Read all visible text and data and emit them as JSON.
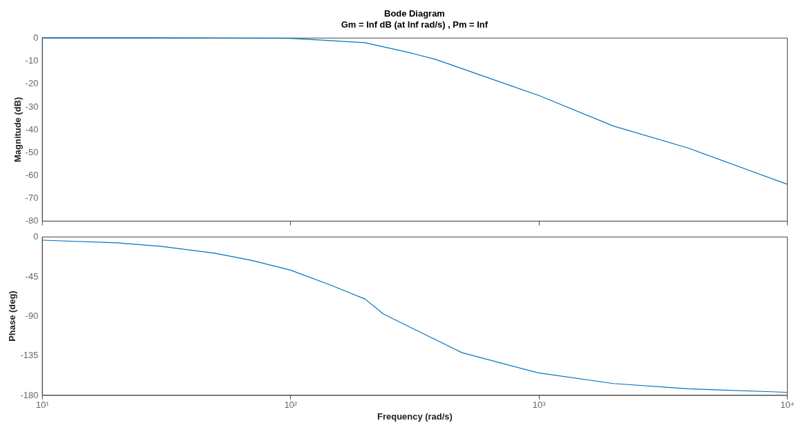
{
  "chart_data": [
    {
      "type": "line",
      "title": "Bode Diagram",
      "subtitle": "Gm = Inf dB (at Inf rad/s) ,  Pm = Inf",
      "ylabel": "Magnitude (dB)",
      "log": "x",
      "grid": false,
      "tick_labels": "y",
      "xlim": [
        10,
        10000
      ],
      "ylim": [
        -80,
        0
      ],
      "yticks": [
        -80,
        -70,
        -60,
        -50,
        -40,
        -30,
        -20,
        -10,
        0
      ],
      "xticks": [
        {
          "value": 10,
          "label": null
        },
        {
          "value": 100,
          "label": null
        },
        {
          "value": 1000,
          "label": null
        },
        {
          "value": 10000,
          "label": null
        }
      ],
      "series": [
        {
          "color": "#0072bd",
          "x": [
            10,
            20,
            50,
            100,
            142,
            200,
            309,
            385,
            600,
            1000,
            2000,
            4000,
            10000
          ],
          "values": [
            0,
            0,
            -0.1,
            -0.3,
            -1.2,
            -2.2,
            -6.8,
            -9.5,
            -16.8,
            -25.2,
            -38.6,
            -48.2,
            -64
          ]
        }
      ]
    },
    {
      "type": "line",
      "xlabel": "Frequency  (rad/s)",
      "ylabel": "Phase (deg)",
      "log": "x",
      "grid": false,
      "xlim": [
        10,
        10000
      ],
      "ylim": [
        -180,
        0
      ],
      "yticks": [
        -180,
        -135,
        -90,
        -45,
        0
      ],
      "xticks": [
        {
          "value": 10,
          "label": "10¹"
        },
        {
          "value": 100,
          "label": "10²"
        },
        {
          "value": 1000,
          "label": "10³"
        },
        {
          "value": 10000,
          "label": "10⁴"
        }
      ],
      "series": [
        {
          "color": "#0072bd",
          "x": [
            10,
            20,
            30,
            50,
            70,
            100,
            142,
            200,
            237,
            309,
            492,
            1000,
            2000,
            4000,
            10000
          ],
          "values": [
            -4,
            -7,
            -11,
            -19,
            -27,
            -38,
            -54,
            -71,
            -88,
            -104,
            -132,
            -155,
            -167,
            -173,
            -177
          ]
        }
      ]
    }
  ]
}
